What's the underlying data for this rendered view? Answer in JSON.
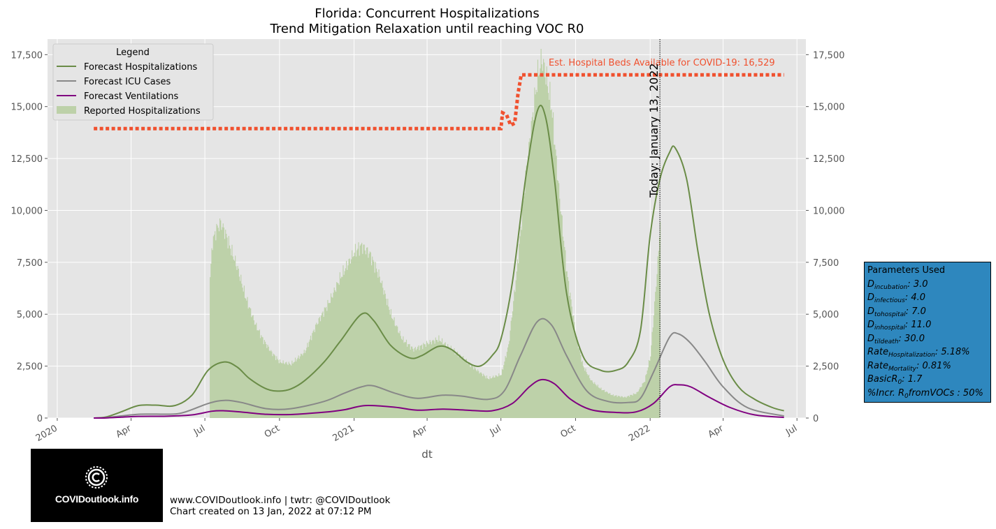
{
  "chart_data": {
    "type": "area",
    "title": "Florida: Concurrent Hospitalizations",
    "subtitle": "Trend Mitigation Relaxation until reaching VOC R0",
    "xlabel": "dt",
    "ylabel": "",
    "ylim": [
      0,
      18250
    ],
    "xlim": [
      "2019-12-20",
      "2022-07-12"
    ],
    "grid": true,
    "y_ticks": [
      0,
      2500,
      5000,
      7500,
      10000,
      12500,
      15000,
      17500
    ],
    "y_tick_labels": [
      "0",
      "2,500",
      "5,000",
      "7,500",
      "10,000",
      "12,500",
      "15,000",
      "17,500"
    ],
    "x_ticks": [
      "2020-01-01",
      "2020-04-01",
      "2020-07-01",
      "2020-10-01",
      "2021-01-01",
      "2021-04-01",
      "2021-07-01",
      "2021-10-01",
      "2022-01-01",
      "2022-04-01",
      "2022-07-01"
    ],
    "x_tick_labels": [
      "2020",
      "Apr",
      "Jul",
      "Oct",
      "2021",
      "Apr",
      "Jul",
      "Oct",
      "2022",
      "Apr",
      "Jul"
    ],
    "legend": {
      "title": "Legend",
      "placement": "top-left",
      "entries": [
        "Forecast Hospitalizations",
        "Forecast ICU Cases",
        "Forecast Ventilations",
        "Reported Hospitalizations"
      ]
    },
    "series": [
      {
        "name": "Forecast Hospitalizations",
        "kind": "line",
        "color": "#6a8c47",
        "x": [
          "2020-02-15",
          "2020-03-01",
          "2020-03-20",
          "2020-04-10",
          "2020-05-01",
          "2020-05-25",
          "2020-06-15",
          "2020-07-05",
          "2020-07-25",
          "2020-08-10",
          "2020-08-25",
          "2020-09-15",
          "2020-10-01",
          "2020-10-15",
          "2020-11-01",
          "2020-11-25",
          "2020-12-15",
          "2021-01-10",
          "2021-01-25",
          "2021-02-15",
          "2021-03-10",
          "2021-03-25",
          "2021-04-15",
          "2021-05-01",
          "2021-05-20",
          "2021-06-05",
          "2021-06-20",
          "2021-07-01",
          "2021-07-15",
          "2021-08-01",
          "2021-08-15",
          "2021-08-25",
          "2021-09-05",
          "2021-09-20",
          "2021-10-10",
          "2021-11-01",
          "2021-11-20",
          "2021-12-05",
          "2021-12-20",
          "2022-01-01",
          "2022-01-13",
          "2022-01-25",
          "2022-02-01",
          "2022-02-15",
          "2022-03-01",
          "2022-03-15",
          "2022-04-01",
          "2022-04-20",
          "2022-05-10",
          "2022-06-01",
          "2022-06-15"
        ],
        "values": [
          0,
          50,
          300,
          600,
          620,
          600,
          1100,
          2300,
          2700,
          2450,
          1900,
          1400,
          1300,
          1400,
          1800,
          2700,
          3700,
          5000,
          4700,
          3500,
          2900,
          3000,
          3450,
          3300,
          2700,
          2500,
          3000,
          3800,
          6500,
          11700,
          14800,
          14500,
          11500,
          6000,
          3000,
          2300,
          2300,
          2700,
          4200,
          8800,
          11500,
          12800,
          13000,
          11500,
          8000,
          5000,
          2800,
          1500,
          900,
          500,
          350
        ]
      },
      {
        "name": "Forecast ICU Cases",
        "kind": "line",
        "color": "#888888",
        "x": [
          "2020-02-15",
          "2020-03-01",
          "2020-03-20",
          "2020-04-10",
          "2020-05-01",
          "2020-06-01",
          "2020-07-05",
          "2020-07-25",
          "2020-08-15",
          "2020-09-15",
          "2020-10-15",
          "2020-11-25",
          "2020-12-20",
          "2021-01-10",
          "2021-01-25",
          "2021-02-20",
          "2021-03-20",
          "2021-04-20",
          "2021-05-15",
          "2021-06-15",
          "2021-07-05",
          "2021-07-25",
          "2021-08-15",
          "2021-09-01",
          "2021-09-20",
          "2021-10-15",
          "2021-11-10",
          "2021-12-05",
          "2021-12-20",
          "2022-01-05",
          "2022-01-25",
          "2022-02-05",
          "2022-02-20",
          "2022-03-10",
          "2022-04-01",
          "2022-05-01",
          "2022-06-15"
        ],
        "values": [
          0,
          20,
          100,
          180,
          190,
          230,
          700,
          850,
          750,
          450,
          450,
          800,
          1200,
          1500,
          1550,
          1200,
          950,
          1100,
          1050,
          900,
          1300,
          3000,
          4650,
          4500,
          3000,
          1300,
          800,
          750,
          950,
          2200,
          3900,
          4050,
          3600,
          2700,
          1500,
          500,
          100
        ]
      },
      {
        "name": "Forecast Ventilations",
        "kind": "line",
        "color": "#800080",
        "x": [
          "2020-02-15",
          "2020-03-01",
          "2020-03-20",
          "2020-04-10",
          "2020-05-15",
          "2020-06-15",
          "2020-07-10",
          "2020-07-25",
          "2020-08-15",
          "2020-09-15",
          "2020-10-15",
          "2020-11-25",
          "2020-12-20",
          "2021-01-15",
          "2021-02-20",
          "2021-03-20",
          "2021-04-20",
          "2021-05-20",
          "2021-06-20",
          "2021-07-15",
          "2021-08-05",
          "2021-08-20",
          "2021-09-05",
          "2021-09-25",
          "2021-10-20",
          "2021-11-20",
          "2021-12-15",
          "2022-01-05",
          "2022-01-25",
          "2022-02-05",
          "2022-02-20",
          "2022-03-15",
          "2022-04-10",
          "2022-05-10",
          "2022-06-15"
        ],
        "values": [
          0,
          5,
          40,
          80,
          90,
          150,
          330,
          350,
          290,
          180,
          170,
          280,
          400,
          600,
          520,
          380,
          430,
          380,
          350,
          700,
          1500,
          1850,
          1650,
          900,
          400,
          270,
          300,
          700,
          1500,
          1600,
          1500,
          1000,
          500,
          150,
          30
        ]
      },
      {
        "name": "Reported Hospitalizations",
        "kind": "area",
        "color": "#bdd1a9",
        "x": [
          "2020-07-07",
          "2020-07-10",
          "2020-07-15",
          "2020-07-20",
          "2020-07-25",
          "2020-08-01",
          "2020-08-10",
          "2020-08-20",
          "2020-09-01",
          "2020-09-10",
          "2020-09-20",
          "2020-10-01",
          "2020-10-15",
          "2020-11-01",
          "2020-11-15",
          "2020-12-01",
          "2020-12-15",
          "2021-01-01",
          "2021-01-10",
          "2021-01-20",
          "2021-02-01",
          "2021-02-15",
          "2021-03-01",
          "2021-03-15",
          "2021-04-01",
          "2021-04-15",
          "2021-05-01",
          "2021-05-15",
          "2021-06-01",
          "2021-06-15",
          "2021-07-01",
          "2021-07-10",
          "2021-07-20",
          "2021-08-01",
          "2021-08-10",
          "2021-08-15",
          "2021-08-20",
          "2021-08-25",
          "2021-09-01",
          "2021-09-10",
          "2021-09-20",
          "2021-10-01",
          "2021-10-10",
          "2021-10-20",
          "2021-11-01",
          "2021-11-15",
          "2021-12-01",
          "2021-12-15",
          "2021-12-25",
          "2022-01-01",
          "2022-01-05",
          "2022-01-10",
          "2022-01-13"
        ],
        "values": [
          6800,
          8500,
          9100,
          9400,
          9000,
          8200,
          7200,
          5800,
          4500,
          3800,
          3200,
          2700,
          2600,
          3200,
          4500,
          5600,
          6800,
          8000,
          8300,
          7900,
          6800,
          5000,
          3800,
          3300,
          3600,
          3800,
          3300,
          2900,
          2300,
          1900,
          2100,
          3500,
          7000,
          12000,
          15000,
          16500,
          17300,
          16500,
          15000,
          11000,
          7000,
          4000,
          2500,
          1800,
          1400,
          1100,
          1000,
          1200,
          1800,
          3000,
          5000,
          7500,
          9500
        ]
      }
    ],
    "threshold": {
      "name": "Est. Hospital Beds Available for COVID-19",
      "label": "Est. Hospital Beds Available for COVID-19: 16,529",
      "color": "#f0512f",
      "x": [
        "2020-02-15",
        "2021-07-01",
        "2021-07-03",
        "2021-07-08",
        "2021-07-13",
        "2021-07-18",
        "2021-07-22",
        "2021-07-26",
        "2022-06-15"
      ],
      "values": [
        13940,
        13940,
        14700,
        14600,
        14100,
        14200,
        15600,
        16529,
        16529
      ]
    },
    "today": {
      "date": "2022-01-13",
      "label": "Today: January 13, 2022"
    }
  },
  "parameters": {
    "title": "Parameters Used",
    "rows": [
      {
        "sym": "D",
        "sub": "incubation",
        "value": ": 3.0"
      },
      {
        "sym": "D",
        "sub": "infectious",
        "value": ": 4.0"
      },
      {
        "sym": "D",
        "sub": "tohospital",
        "value": ": 7.0"
      },
      {
        "sym": "D",
        "sub": "inhospital",
        "value": ": 11.0"
      },
      {
        "sym": "D",
        "sub": "tildeath",
        "value": ": 30.0"
      },
      {
        "sym": "Rate",
        "sub": "Hospitalization",
        "value": ": 5.18%"
      },
      {
        "sym": "Rate",
        "sub": "Mortality",
        "value": ": 0.81%"
      },
      {
        "sym": "BasicR",
        "sub": "0",
        "value": ": 1.7"
      },
      {
        "sym": "%Incr. R",
        "sub": "0",
        "value": "fromVOCs : 50%"
      }
    ],
    "background": "#2e87be"
  },
  "logo": {
    "text": "COVIDoutlook.info"
  },
  "footer": {
    "line1": "www.COVIDoutlook.info | twtr: @COVIDoutlook",
    "line2": "Chart created on 13 Jan, 2022 at 07:12 PM"
  }
}
